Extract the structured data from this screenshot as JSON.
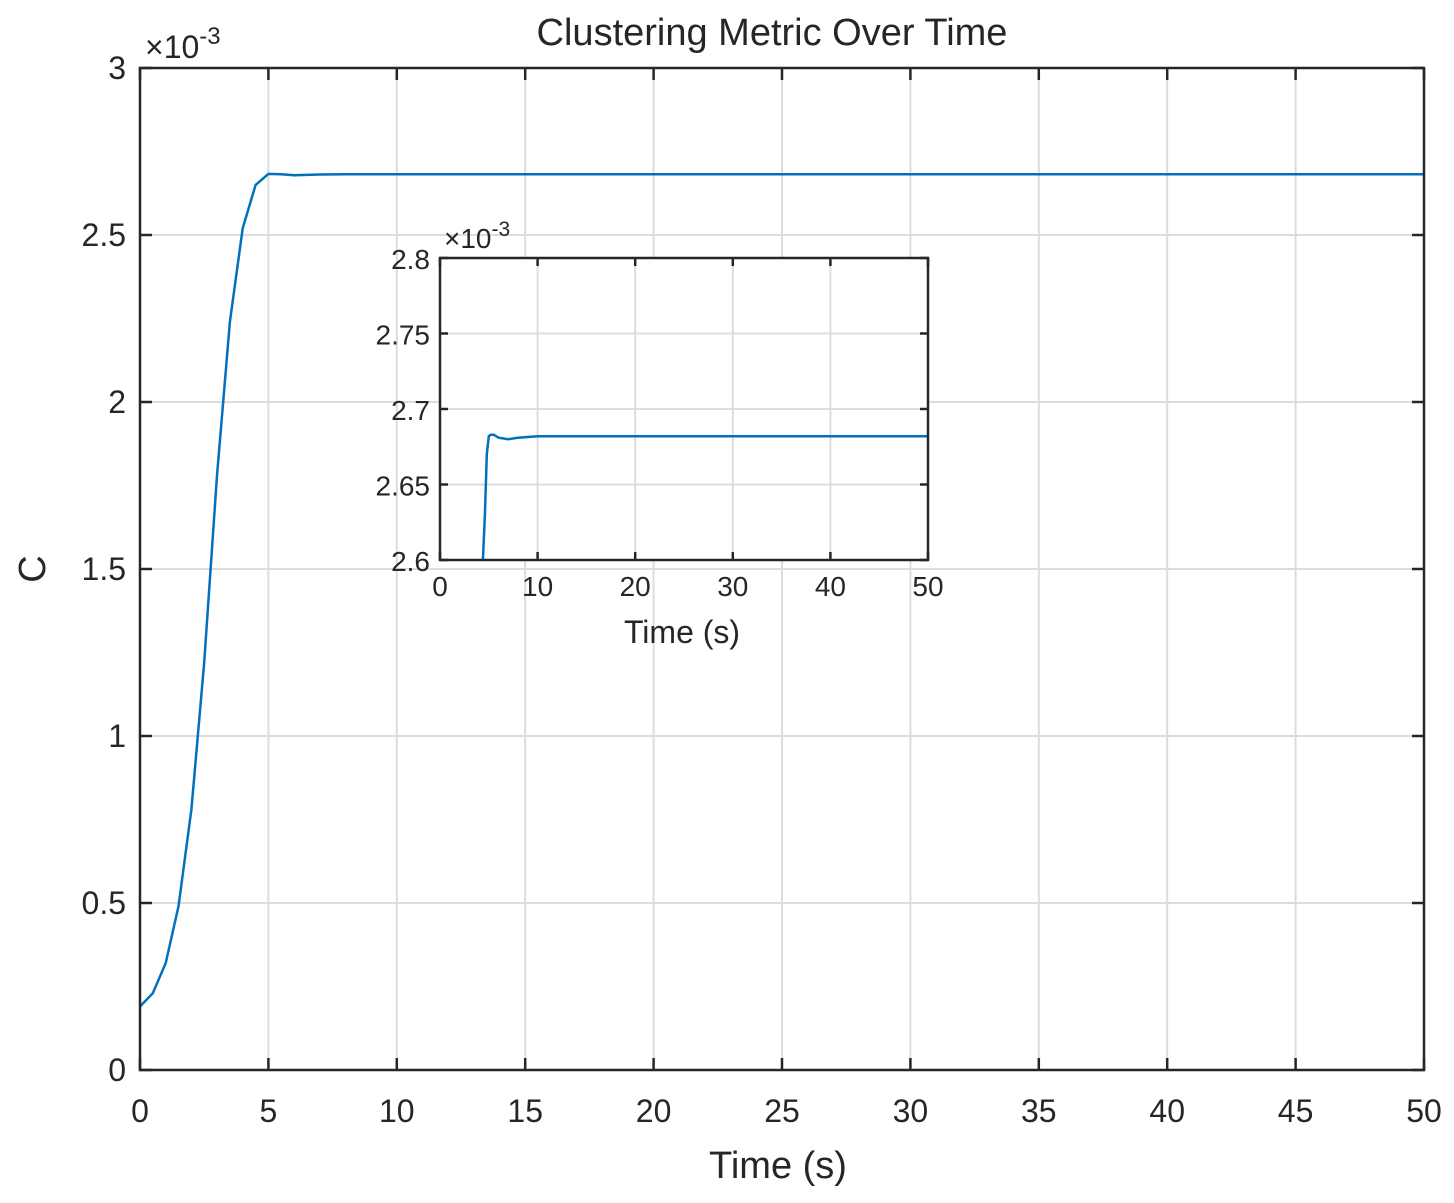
{
  "chart_data": [
    {
      "type": "line",
      "title": "Clustering Metric Over Time",
      "xlabel": "Time (s)",
      "ylabel": "C",
      "y_exponent_label": "×10",
      "y_exponent_power": "-3",
      "xlim": [
        0,
        50
      ],
      "ylim": [
        0,
        0.003
      ],
      "xticks": [
        0,
        5,
        10,
        15,
        20,
        25,
        30,
        35,
        40,
        45,
        50
      ],
      "xtick_labels": [
        "0",
        "5",
        "10",
        "15",
        "20",
        "25",
        "30",
        "35",
        "40",
        "45",
        "50"
      ],
      "yticks": [
        0,
        0.0005,
        0.001,
        0.0015,
        0.002,
        0.0025,
        0.003
      ],
      "ytick_labels": [
        "0",
        "0.5",
        "1",
        "1.5",
        "2",
        "2.5",
        "3"
      ],
      "grid": true,
      "series": [
        {
          "color": "#0072BD",
          "x": [
            0,
            0.5,
            1,
            1.5,
            2,
            2.5,
            3,
            3.5,
            4,
            4.5,
            5,
            5.5,
            6,
            7,
            8,
            10,
            15,
            20,
            30,
            40,
            50
          ],
          "y": [
            0.00019,
            0.00023,
            0.00032,
            0.00049,
            0.00078,
            0.00122,
            0.00178,
            0.00224,
            0.00252,
            0.00265,
            0.002683,
            0.002682,
            0.002679,
            0.002681,
            0.002682,
            0.002682,
            0.002682,
            0.002682,
            0.002682,
            0.002682,
            0.002682
          ]
        }
      ]
    },
    {
      "type": "line",
      "title": "",
      "xlabel": "Time (s)",
      "ylabel": "",
      "y_exponent_label": "×10",
      "y_exponent_power": "-3",
      "xlim": [
        0,
        50
      ],
      "ylim": [
        0.0026,
        0.0028
      ],
      "xticks": [
        0,
        10,
        20,
        30,
        40,
        50
      ],
      "xtick_labels": [
        "0",
        "10",
        "20",
        "30",
        "40",
        "50"
      ],
      "yticks": [
        0.0026,
        0.00265,
        0.0027,
        0.00275,
        0.0028
      ],
      "ytick_labels": [
        "2.6",
        "2.65",
        "2.7",
        "2.75",
        "2.8"
      ],
      "grid": true,
      "series": [
        {
          "color": "#0072BD",
          "x": [
            4.4,
            4.6,
            4.8,
            5.0,
            5.2,
            5.5,
            6,
            7,
            8,
            10,
            15,
            20,
            30,
            40,
            50
          ],
          "y": [
            0.0026,
            0.00263,
            0.00267,
            0.002682,
            0.002683,
            0.002683,
            0.002681,
            0.00268,
            0.002681,
            0.002682,
            0.002682,
            0.002682,
            0.002682,
            0.002682,
            0.002682
          ]
        }
      ]
    }
  ]
}
